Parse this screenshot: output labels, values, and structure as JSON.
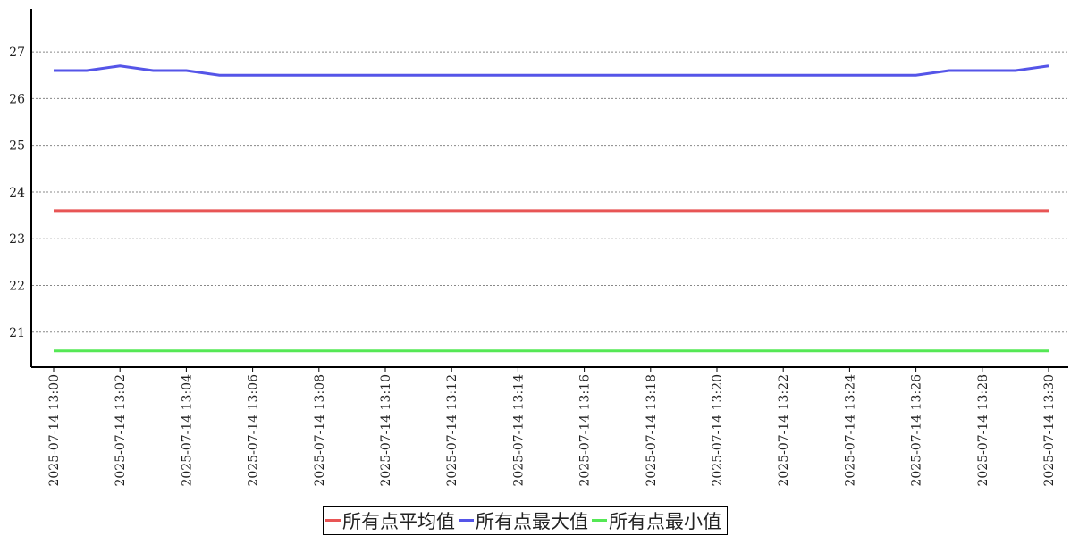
{
  "chart_data": {
    "type": "line",
    "title": "",
    "xlabel": "",
    "ylabel": "",
    "ylim": [
      20.25,
      27.92
    ],
    "yticks": [
      21,
      22,
      23,
      24,
      25,
      26,
      27
    ],
    "grid": "horizontal dashed",
    "legend_placement": "bottom-center",
    "x": [
      "2025-07-14 13:00",
      "2025-07-14 13:01",
      "2025-07-14 13:02",
      "2025-07-14 13:03",
      "2025-07-14 13:04",
      "2025-07-14 13:05",
      "2025-07-14 13:06",
      "2025-07-14 13:07",
      "2025-07-14 13:08",
      "2025-07-14 13:09",
      "2025-07-14 13:10",
      "2025-07-14 13:11",
      "2025-07-14 13:12",
      "2025-07-14 13:13",
      "2025-07-14 13:14",
      "2025-07-14 13:15",
      "2025-07-14 13:16",
      "2025-07-14 13:17",
      "2025-07-14 13:18",
      "2025-07-14 13:19",
      "2025-07-14 13:20",
      "2025-07-14 13:21",
      "2025-07-14 13:22",
      "2025-07-14 13:23",
      "2025-07-14 13:24",
      "2025-07-14 13:25",
      "2025-07-14 13:26",
      "2025-07-14 13:27",
      "2025-07-14 13:28",
      "2025-07-14 13:29",
      "2025-07-14 13:30"
    ],
    "xtick_labels": [
      "2025-07-14 13:00",
      "2025-07-14 13:02",
      "2025-07-14 13:04",
      "2025-07-14 13:06",
      "2025-07-14 13:08",
      "2025-07-14 13:10",
      "2025-07-14 13:12",
      "2025-07-14 13:14",
      "2025-07-14 13:16",
      "2025-07-14 13:18",
      "2025-07-14 13:20",
      "2025-07-14 13:22",
      "2025-07-14 13:24",
      "2025-07-14 13:26",
      "2025-07-14 13:28",
      "2025-07-14 13:30"
    ],
    "series": [
      {
        "name": "所有点平均值",
        "color": "#e85555",
        "values": [
          23.6,
          23.6,
          23.6,
          23.6,
          23.6,
          23.6,
          23.6,
          23.6,
          23.6,
          23.6,
          23.6,
          23.6,
          23.6,
          23.6,
          23.6,
          23.6,
          23.6,
          23.6,
          23.6,
          23.6,
          23.6,
          23.6,
          23.6,
          23.6,
          23.6,
          23.6,
          23.6,
          23.6,
          23.6,
          23.6,
          23.6
        ]
      },
      {
        "name": "所有点最大值",
        "color": "#5555e8",
        "values": [
          26.6,
          26.6,
          26.7,
          26.6,
          26.6,
          26.5,
          26.5,
          26.5,
          26.5,
          26.5,
          26.5,
          26.5,
          26.5,
          26.5,
          26.5,
          26.5,
          26.5,
          26.5,
          26.5,
          26.5,
          26.5,
          26.5,
          26.5,
          26.5,
          26.5,
          26.5,
          26.5,
          26.6,
          26.6,
          26.6,
          26.7
        ]
      },
      {
        "name": "所有点最小值",
        "color": "#55e855",
        "values": [
          20.6,
          20.6,
          20.6,
          20.6,
          20.6,
          20.6,
          20.6,
          20.6,
          20.6,
          20.6,
          20.6,
          20.6,
          20.6,
          20.6,
          20.6,
          20.6,
          20.6,
          20.6,
          20.6,
          20.6,
          20.6,
          20.6,
          20.6,
          20.6,
          20.6,
          20.6,
          20.6,
          20.6,
          20.6,
          20.6,
          20.6
        ]
      }
    ]
  }
}
